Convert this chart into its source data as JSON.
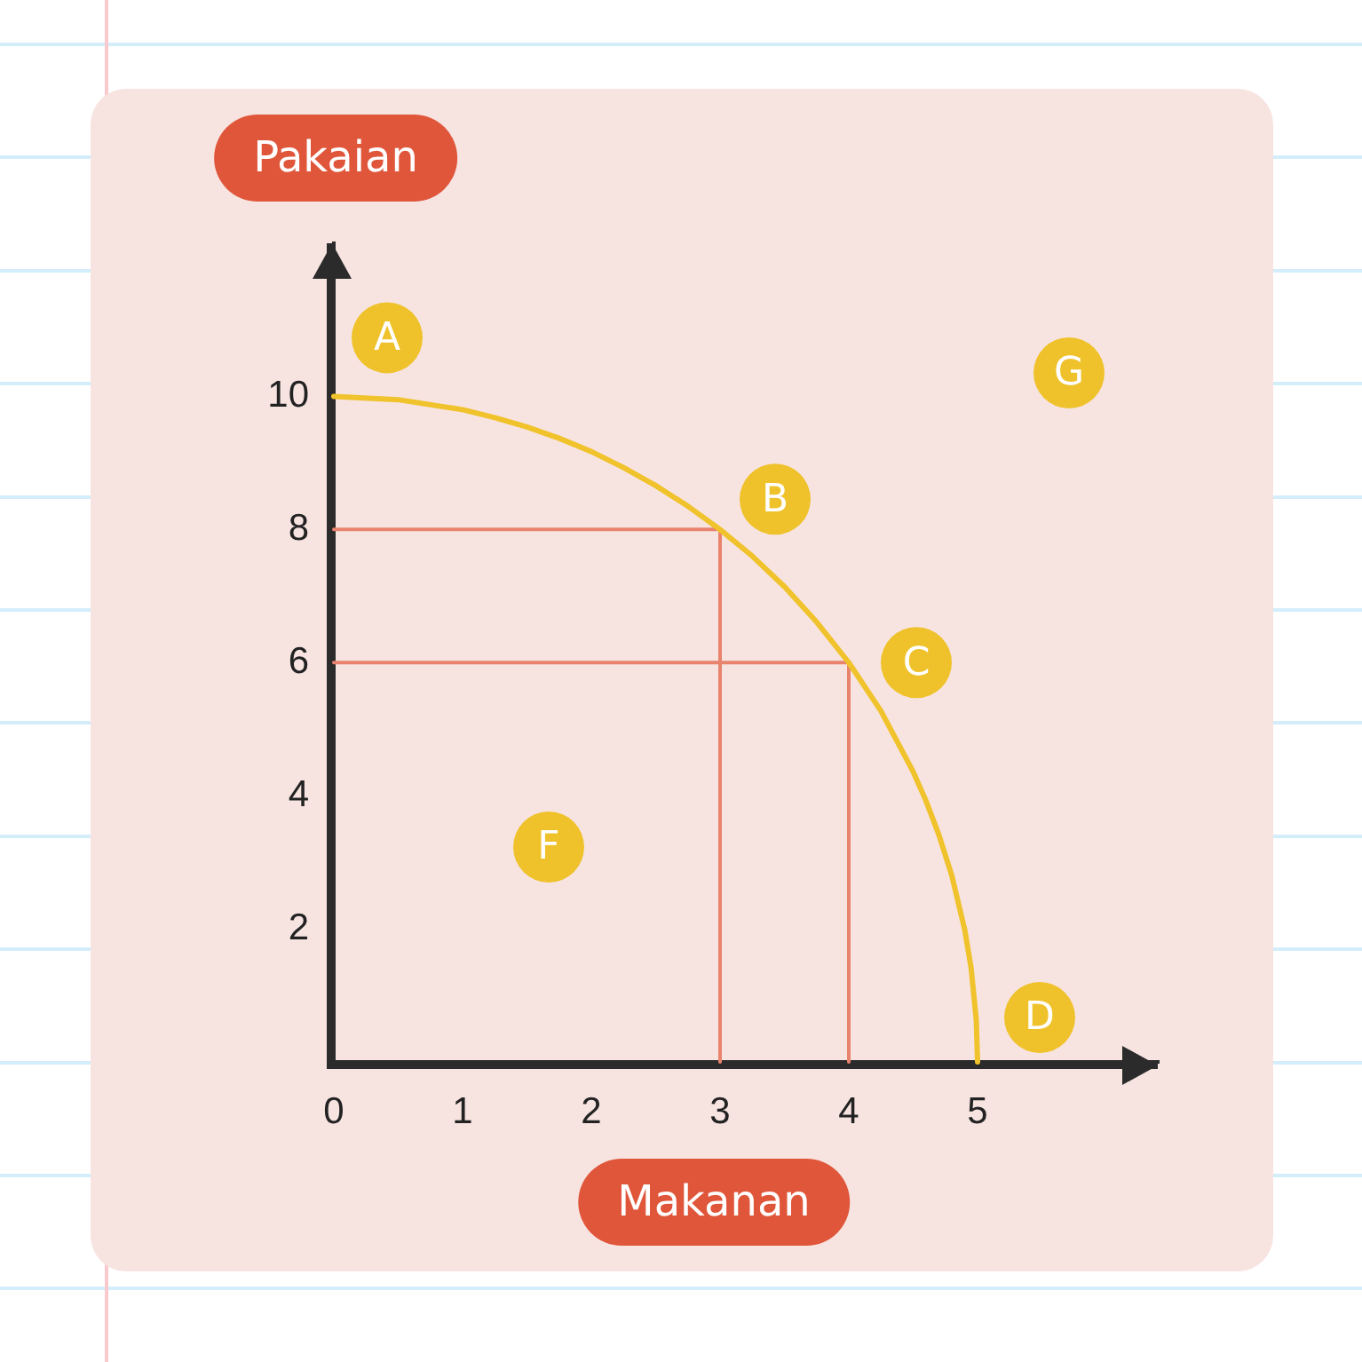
{
  "chart_data": {
    "type": "line",
    "xlabel": "Makanan",
    "ylabel": "Pakaian",
    "xlim": [
      0,
      6.4
    ],
    "xticks": [
      0,
      1,
      2,
      3,
      4,
      5
    ],
    "ylim": [
      0,
      12.3
    ],
    "yticks": [
      2,
      4,
      6,
      8,
      10
    ],
    "marker": "none",
    "series": [
      {
        "color": "#f0c22b",
        "x": [
          0,
          0.5,
          1,
          1.25,
          1.5,
          1.75,
          2,
          2.25,
          2.5,
          2.75,
          3,
          3.25,
          3.5,
          3.75,
          4,
          4.25,
          4.5,
          4.6,
          4.7,
          4.8,
          4.9,
          4.95,
          4.99,
          5
        ],
        "values": [
          10,
          9.95,
          9.8,
          9.68,
          9.54,
          9.37,
          9.17,
          8.93,
          8.66,
          8.35,
          8,
          7.6,
          7.14,
          6.61,
          6,
          5.27,
          4.36,
          3.92,
          3.41,
          2.8,
          1.99,
          1.41,
          0.63,
          0
        ]
      },
      {
        "color": "#e8836e",
        "x": [
          0,
          3,
          3
        ],
        "values": [
          8,
          8,
          0
        ]
      },
      {
        "color": "#e8836e",
        "x": [
          0,
          4,
          4
        ],
        "values": [
          6,
          6,
          0
        ]
      }
    ],
    "annotations": [
      {
        "text": "A",
        "x": 0,
        "y": 10
      },
      {
        "text": "B",
        "x": 3,
        "y": 8
      },
      {
        "text": "C",
        "x": 4,
        "y": 6
      },
      {
        "text": "D",
        "x": 5,
        "y": 0
      },
      "F",
      "G"
    ]
  }
}
